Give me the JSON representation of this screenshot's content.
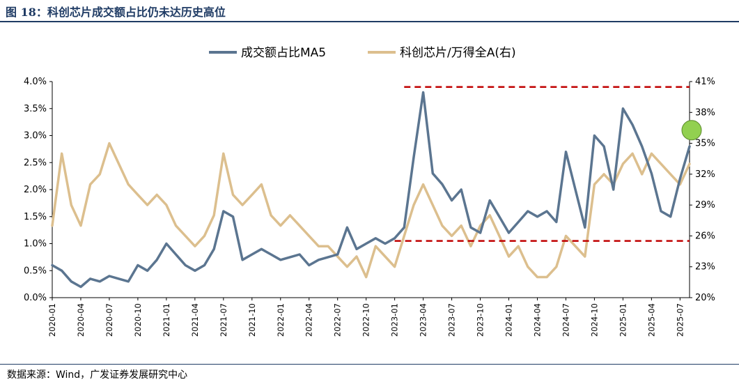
{
  "title": "图 18：科创芯片成交额占比仍未达历史高位",
  "source": "数据来源：Wind，广发证券发展研究中心",
  "chart_data": {
    "type": "line",
    "legend_position": "top-center",
    "grid": false,
    "y_left": {
      "lim": [
        0.0,
        4.0
      ],
      "ticks": [
        "0.0%",
        "0.5%",
        "1.0%",
        "1.5%",
        "2.0%",
        "2.5%",
        "3.0%",
        "3.5%",
        "4.0%"
      ]
    },
    "y_right": {
      "lim": [
        20,
        41
      ],
      "ticks": [
        "20%",
        "23%",
        "26%",
        "29%",
        "32%",
        "35%",
        "38%",
        "41%"
      ]
    },
    "x_ticks": [
      "2020-01",
      "2020-04",
      "2020-07",
      "2020-10",
      "2021-01",
      "2021-04",
      "2021-07",
      "2021-10",
      "2022-01",
      "2022-04",
      "2022-07",
      "2022-10",
      "2023-01",
      "2023-04",
      "2023-07",
      "2023-10",
      "2024-01",
      "2024-04",
      "2024-07",
      "2024-10",
      "2025-01",
      "2025-04",
      "2025-07"
    ],
    "series": [
      {
        "name": "成交额占比MA5",
        "axis": "left",
        "color": "#5b7590",
        "points": [
          [
            "2020-01",
            0.6
          ],
          [
            "2020-02",
            0.5
          ],
          [
            "2020-03",
            0.3
          ],
          [
            "2020-04",
            0.2
          ],
          [
            "2020-05",
            0.35
          ],
          [
            "2020-06",
            0.3
          ],
          [
            "2020-07",
            0.4
          ],
          [
            "2020-08",
            0.35
          ],
          [
            "2020-09",
            0.3
          ],
          [
            "2020-10",
            0.6
          ],
          [
            "2020-11",
            0.5
          ],
          [
            "2020-12",
            0.7
          ],
          [
            "2021-01",
            1.0
          ],
          [
            "2021-02",
            0.8
          ],
          [
            "2021-03",
            0.6
          ],
          [
            "2021-04",
            0.5
          ],
          [
            "2021-05",
            0.6
          ],
          [
            "2021-06",
            0.9
          ],
          [
            "2021-07",
            1.6
          ],
          [
            "2021-08",
            1.5
          ],
          [
            "2021-09",
            0.7
          ],
          [
            "2021-10",
            0.8
          ],
          [
            "2021-11",
            0.9
          ],
          [
            "2021-12",
            0.8
          ],
          [
            "2022-01",
            0.7
          ],
          [
            "2022-02",
            0.75
          ],
          [
            "2022-03",
            0.8
          ],
          [
            "2022-04",
            0.6
          ],
          [
            "2022-05",
            0.7
          ],
          [
            "2022-06",
            0.75
          ],
          [
            "2022-07",
            0.8
          ],
          [
            "2022-08",
            1.3
          ],
          [
            "2022-09",
            0.9
          ],
          [
            "2022-10",
            1.0
          ],
          [
            "2022-11",
            1.1
          ],
          [
            "2022-12",
            1.0
          ],
          [
            "2023-01",
            1.1
          ],
          [
            "2023-02",
            1.3
          ],
          [
            "2023-03",
            2.6
          ],
          [
            "2023-04",
            3.8
          ],
          [
            "2023-05",
            2.3
          ],
          [
            "2023-06",
            2.1
          ],
          [
            "2023-07",
            1.8
          ],
          [
            "2023-08",
            2.0
          ],
          [
            "2023-09",
            1.3
          ],
          [
            "2023-10",
            1.2
          ],
          [
            "2023-11",
            1.8
          ],
          [
            "2023-12",
            1.5
          ],
          [
            "2024-01",
            1.2
          ],
          [
            "2024-02",
            1.4
          ],
          [
            "2024-03",
            1.6
          ],
          [
            "2024-04",
            1.5
          ],
          [
            "2024-05",
            1.6
          ],
          [
            "2024-06",
            1.4
          ],
          [
            "2024-07",
            2.7
          ],
          [
            "2024-08",
            2.0
          ],
          [
            "2024-09",
            1.3
          ],
          [
            "2024-10",
            3.0
          ],
          [
            "2024-11",
            2.8
          ],
          [
            "2024-12",
            2.0
          ],
          [
            "2025-01",
            3.5
          ],
          [
            "2025-02",
            3.2
          ],
          [
            "2025-03",
            2.8
          ],
          [
            "2025-04",
            2.3
          ],
          [
            "2025-05",
            1.6
          ],
          [
            "2025-06",
            1.5
          ],
          [
            "2025-07",
            2.2
          ],
          [
            "2025-08",
            2.8
          ]
        ]
      },
      {
        "name": "科创芯片/万得全A(右)",
        "axis": "right",
        "color": "#dcbf8e",
        "points": [
          [
            "2020-01",
            27
          ],
          [
            "2020-02",
            34
          ],
          [
            "2020-03",
            29
          ],
          [
            "2020-04",
            27
          ],
          [
            "2020-05",
            31
          ],
          [
            "2020-06",
            32
          ],
          [
            "2020-07",
            35
          ],
          [
            "2020-08",
            33
          ],
          [
            "2020-09",
            31
          ],
          [
            "2020-10",
            30
          ],
          [
            "2020-11",
            29
          ],
          [
            "2020-12",
            30
          ],
          [
            "2021-01",
            29
          ],
          [
            "2021-02",
            27
          ],
          [
            "2021-03",
            26
          ],
          [
            "2021-04",
            25
          ],
          [
            "2021-05",
            26
          ],
          [
            "2021-06",
            28
          ],
          [
            "2021-07",
            34
          ],
          [
            "2021-08",
            30
          ],
          [
            "2021-09",
            29
          ],
          [
            "2021-10",
            30
          ],
          [
            "2021-11",
            31
          ],
          [
            "2021-12",
            28
          ],
          [
            "2022-01",
            27
          ],
          [
            "2022-02",
            28
          ],
          [
            "2022-03",
            27
          ],
          [
            "2022-04",
            26
          ],
          [
            "2022-05",
            25
          ],
          [
            "2022-06",
            25
          ],
          [
            "2022-07",
            24
          ],
          [
            "2022-08",
            23
          ],
          [
            "2022-09",
            24
          ],
          [
            "2022-10",
            22
          ],
          [
            "2022-11",
            25
          ],
          [
            "2022-12",
            24
          ],
          [
            "2023-01",
            23
          ],
          [
            "2023-02",
            26
          ],
          [
            "2023-03",
            29
          ],
          [
            "2023-04",
            31
          ],
          [
            "2023-05",
            29
          ],
          [
            "2023-06",
            27
          ],
          [
            "2023-07",
            26
          ],
          [
            "2023-08",
            27
          ],
          [
            "2023-09",
            25
          ],
          [
            "2023-10",
            27
          ],
          [
            "2023-11",
            28
          ],
          [
            "2023-12",
            26
          ],
          [
            "2024-01",
            24
          ],
          [
            "2024-02",
            25
          ],
          [
            "2024-03",
            23
          ],
          [
            "2024-04",
            22
          ],
          [
            "2024-05",
            22
          ],
          [
            "2024-06",
            23
          ],
          [
            "2024-07",
            26
          ],
          [
            "2024-08",
            25
          ],
          [
            "2024-09",
            24
          ],
          [
            "2024-10",
            31
          ],
          [
            "2024-11",
            32
          ],
          [
            "2024-12",
            31
          ],
          [
            "2025-01",
            33
          ],
          [
            "2025-02",
            34
          ],
          [
            "2025-03",
            32
          ],
          [
            "2025-04",
            34
          ],
          [
            "2025-05",
            33
          ],
          [
            "2025-06",
            32
          ],
          [
            "2025-07",
            31
          ],
          [
            "2025-08",
            33
          ]
        ]
      }
    ],
    "annotations": {
      "upper_dashed_line": {
        "axis": "left",
        "value": 3.9,
        "from": "2023-02",
        "to": "2025-08",
        "color": "#c00000"
      },
      "lower_dashed_line": {
        "axis": "left",
        "value": 1.05,
        "from": "2023-01",
        "to": "2025-08",
        "color": "#c00000"
      },
      "highlight_circle": {
        "x": "2025-08",
        "axis": "left",
        "value": 3.1,
        "color": "#92d050"
      }
    }
  }
}
